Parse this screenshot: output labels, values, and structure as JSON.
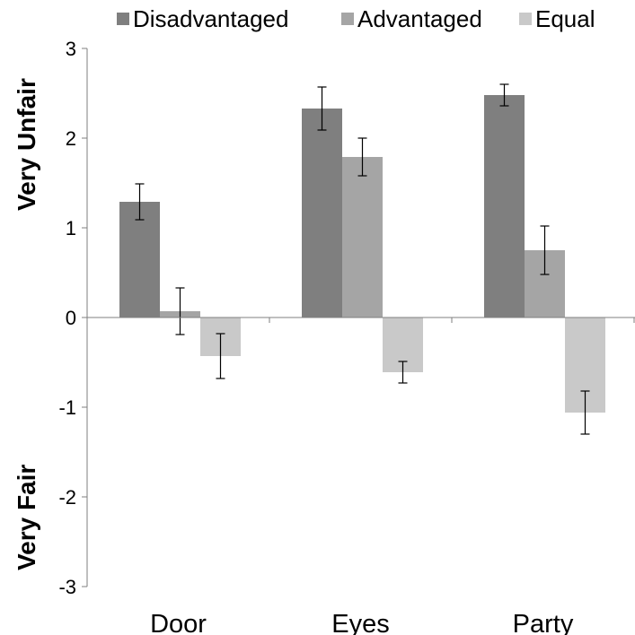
{
  "chart_data": {
    "type": "bar",
    "categories": [
      "Door",
      "Eyes",
      "Party"
    ],
    "series": [
      {
        "name": "Disadvantaged",
        "color": "#7f7f7f",
        "values": [
          1.29,
          2.33,
          2.48
        ],
        "errors": [
          0.2,
          0.24,
          0.12
        ]
      },
      {
        "name": "Advantaged",
        "color": "#a5a5a5",
        "values": [
          0.07,
          1.79,
          0.75
        ],
        "errors": [
          0.26,
          0.21,
          0.27
        ]
      },
      {
        "name": "Equal",
        "color": "#c9c9c9",
        "values": [
          -0.43,
          -0.61,
          -1.06
        ],
        "errors": [
          0.25,
          0.12,
          0.24
        ]
      }
    ],
    "ylim": [
      -3,
      3
    ],
    "yticks": [
      "3",
      "2",
      "1",
      "0",
      "-1",
      "-2",
      "-3"
    ],
    "annotations": {
      "top": "Very Unfair",
      "bottom": "Very Fair"
    },
    "legend_position": "top",
    "grid": false
  }
}
